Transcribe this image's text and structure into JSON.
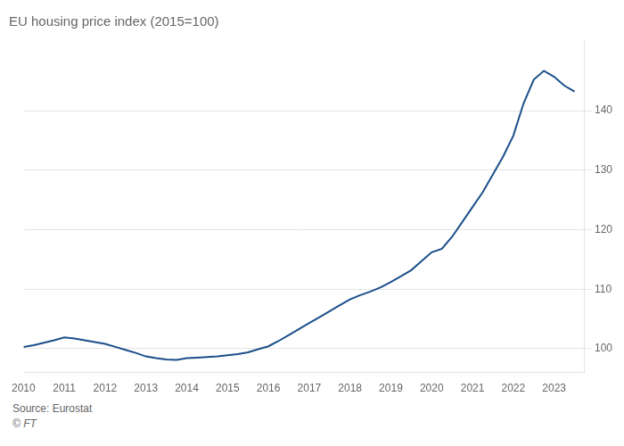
{
  "chart_data": {
    "type": "line",
    "title": "EU housing price index (2015=100)",
    "annotations": [
      "Source: Eurostat",
      "© FT"
    ],
    "x": [
      2010.0,
      2010.25,
      2010.5,
      2010.75,
      2011.0,
      2011.25,
      2011.5,
      2011.75,
      2012.0,
      2012.25,
      2012.5,
      2012.75,
      2013.0,
      2013.25,
      2013.5,
      2013.75,
      2014.0,
      2014.25,
      2014.5,
      2014.75,
      2015.0,
      2015.25,
      2015.5,
      2015.75,
      2016.0,
      2016.25,
      2016.5,
      2016.75,
      2017.0,
      2017.25,
      2017.5,
      2017.75,
      2018.0,
      2018.25,
      2018.5,
      2018.75,
      2019.0,
      2019.25,
      2019.5,
      2019.75,
      2020.0,
      2020.25,
      2020.5,
      2020.75,
      2021.0,
      2021.25,
      2021.5,
      2021.75,
      2022.0,
      2022.25,
      2022.5,
      2022.75,
      2023.0,
      2023.25,
      2023.5
    ],
    "values": [
      100.3,
      100.6,
      101.0,
      101.4,
      101.9,
      101.7,
      101.4,
      101.1,
      100.8,
      100.3,
      99.8,
      99.3,
      98.7,
      98.4,
      98.2,
      98.1,
      98.4,
      98.5,
      98.6,
      98.7,
      98.9,
      99.1,
      99.4,
      99.9,
      100.4,
      101.3,
      102.3,
      103.3,
      104.3,
      105.3,
      106.3,
      107.3,
      108.3,
      109.0,
      109.6,
      110.3,
      111.2,
      112.2,
      113.2,
      114.7,
      116.2,
      116.8,
      118.8,
      121.3,
      123.8,
      126.3,
      129.3,
      132.3,
      135.8,
      141.2,
      145.2,
      146.7,
      145.7,
      144.2,
      143.2
    ],
    "color": "#1a4f8a",
    "marker": "none",
    "xlim": [
      2010,
      2023.75
    ],
    "ylim": [
      96,
      152
    ],
    "xticks": [
      2010,
      2011,
      2012,
      2013,
      2014,
      2015,
      2016,
      2017,
      2018,
      2019,
      2020,
      2021,
      2022,
      2023
    ],
    "yticks": [
      100,
      110,
      120,
      130,
      140
    ],
    "grid": "y"
  }
}
